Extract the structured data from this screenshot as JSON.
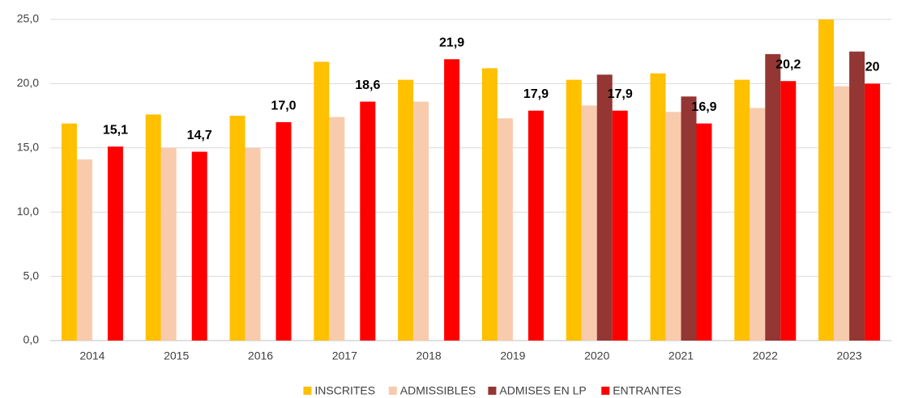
{
  "chart_data": {
    "type": "bar",
    "categories": [
      "2014",
      "2015",
      "2016",
      "2017",
      "2018",
      "2019",
      "2020",
      "2021",
      "2022",
      "2023"
    ],
    "series": [
      {
        "name": "INSCRITES",
        "color": "#ffc000",
        "values": [
          16.9,
          17.6,
          17.5,
          21.7,
          20.3,
          21.2,
          20.3,
          20.8,
          20.3,
          25.0
        ]
      },
      {
        "name": "ADMISSIBLES",
        "color": "#f8cbad",
        "values": [
          14.1,
          15.0,
          15.0,
          17.4,
          18.6,
          17.3,
          18.3,
          17.8,
          18.1,
          19.8
        ]
      },
      {
        "name": "ADMISES EN LP",
        "color": "#943634",
        "values": [
          null,
          null,
          null,
          null,
          null,
          null,
          20.7,
          19.0,
          22.3,
          22.5
        ]
      },
      {
        "name": "ENTRANTES",
        "color": "#ff0000",
        "values": [
          15.1,
          14.7,
          17.0,
          18.6,
          21.9,
          17.9,
          17.9,
          16.9,
          20.2,
          20
        ],
        "value_labels": [
          "15,1",
          "14,7",
          "17,0",
          "18,6",
          "21,9",
          "17,9",
          "17,9",
          "16,9",
          "20,2",
          "20"
        ]
      }
    ],
    "ylim": [
      0,
      25
    ],
    "yticks": [
      {
        "value": 0,
        "label": "0,0"
      },
      {
        "value": 5,
        "label": "5,0"
      },
      {
        "value": 10,
        "label": "10,0"
      },
      {
        "value": 15,
        "label": "15,0"
      },
      {
        "value": 20,
        "label": "20,0"
      },
      {
        "value": 25,
        "label": "25,0"
      }
    ],
    "grid": true,
    "legend": "bottom"
  }
}
